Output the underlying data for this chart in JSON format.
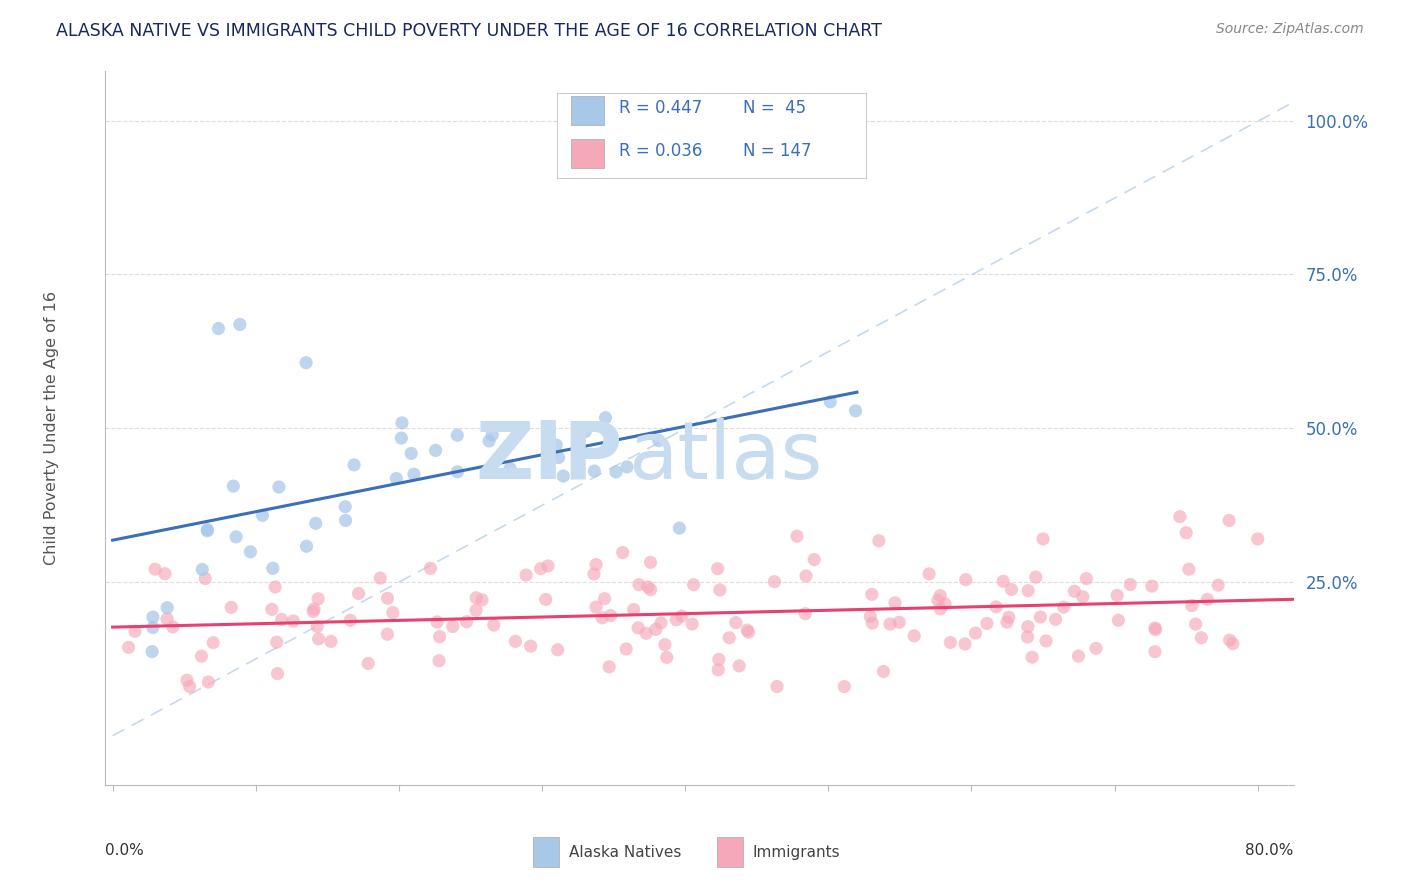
{
  "title": "ALASKA NATIVE VS IMMIGRANTS CHILD POVERTY UNDER THE AGE OF 16 CORRELATION CHART",
  "source": "Source: ZipAtlas.com",
  "ylabel": "Child Poverty Under the Age of 16",
  "ytick_labels": [
    "25.0%",
    "50.0%",
    "75.0%",
    "100.0%"
  ],
  "ytick_values": [
    0.25,
    0.5,
    0.75,
    1.0
  ],
  "legend_r1": "R = 0.447",
  "legend_n1": "N =  45",
  "legend_r2": "R = 0.036",
  "legend_n2": "N = 147",
  "color_blue": "#a8c8e8",
  "color_blue_line": "#3a6fba",
  "color_pink": "#f5a8b8",
  "color_pink_line": "#e84070",
  "color_dashed": "#b8cfe8",
  "title_color": "#1a2860",
  "tick_color": "#3a6fba",
  "source_color": "#888888",
  "label_color": "#555555",
  "watermark_zip_color": "#c8dcf0",
  "watermark_atlas_color": "#c8dcf0",
  "xlim_min": -0.005,
  "xlim_max": 0.825,
  "ylim_min": -0.08,
  "ylim_max": 1.08,
  "grid_color": "#dddddd",
  "alaska_seed": 12,
  "immigrants_seed": 7
}
